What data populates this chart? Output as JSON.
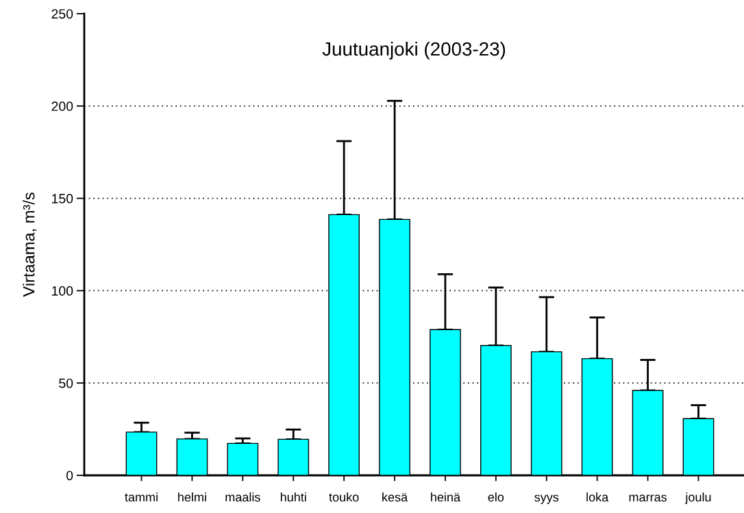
{
  "chart_data": {
    "type": "bar",
    "title": "Juutuanjoki (2003-23)",
    "ylabel": "Virtaama, m³/s",
    "categories": [
      "tammi",
      "helmi",
      "maalis",
      "huhti",
      "touko",
      "kesä",
      "heinä",
      "elo",
      "syys",
      "loka",
      "marras",
      "joulu"
    ],
    "values": [
      23.4,
      19.7,
      17.3,
      19.5,
      141.2,
      138.6,
      78.9,
      70.3,
      66.9,
      63.2,
      46.0,
      30.7
    ],
    "errors": [
      [
        23.4,
        28.5
      ],
      [
        19.7,
        23.1
      ],
      [
        17.3,
        20.0
      ],
      [
        19.5,
        24.8
      ],
      [
        141.2,
        181.0
      ],
      [
        138.6,
        202.8
      ],
      [
        78.9,
        108.9
      ],
      [
        70.3,
        101.7
      ],
      [
        66.9,
        96.5
      ],
      [
        63.2,
        85.5
      ],
      [
        46.0,
        62.5
      ],
      [
        30.7,
        38.0
      ]
    ],
    "color": "#00ffff",
    "ylim": [
      0,
      250
    ],
    "yticks": [
      0,
      50,
      100,
      150,
      200,
      250
    ],
    "grid": "y"
  }
}
